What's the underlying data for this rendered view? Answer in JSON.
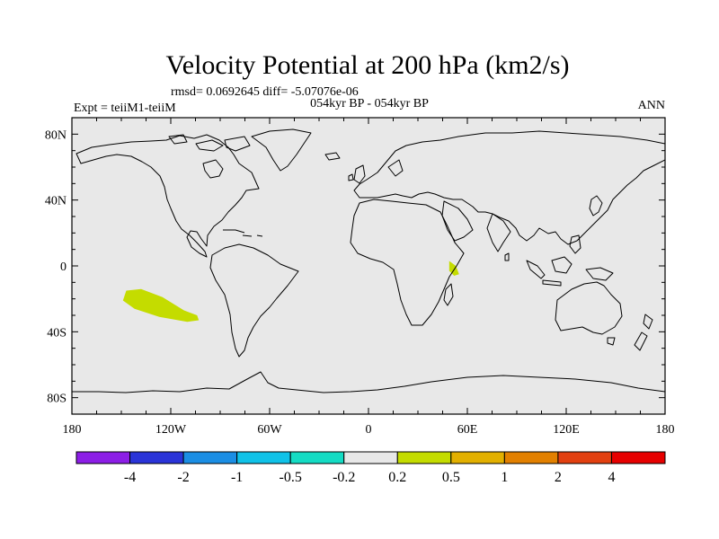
{
  "title": "Velocity Potential at 200 hPa (km2/s)",
  "stats_line": "rmsd= 0.0692645 diff= -5.07076e-06",
  "left_label": "Expt = teiiM1-teiiM",
  "center_label": "054kyr BP - 054kyr BP",
  "right_label": "ANN",
  "map": {
    "projection": "cylindrical-equidistant",
    "lon_range": [
      -180,
      180
    ],
    "lat_range": [
      -90,
      90
    ],
    "background_color": "#e8e8e8",
    "y_ticks": [
      {
        "lat": 80,
        "label": "80N"
      },
      {
        "lat": 40,
        "label": "40N"
      },
      {
        "lat": 0,
        "label": "0"
      },
      {
        "lat": -40,
        "label": "40S"
      },
      {
        "lat": -80,
        "label": "80S"
      }
    ],
    "x_ticks": [
      {
        "lon": -180,
        "label": "180"
      },
      {
        "lon": -120,
        "label": "120W"
      },
      {
        "lon": -60,
        "label": "60W"
      },
      {
        "lon": 0,
        "label": "0"
      },
      {
        "lon": 60,
        "label": "60E"
      },
      {
        "lon": 120,
        "label": "120E"
      },
      {
        "lon": 180,
        "label": "180"
      }
    ],
    "anomaly_regions": [
      {
        "name": "south-pacific-positive-anomaly",
        "color": "#c4dc00",
        "outline": [
          [
            -147,
            -15
          ],
          [
            -138,
            -14
          ],
          [
            -125,
            -19
          ],
          [
            -112,
            -27
          ],
          [
            -104,
            -30
          ],
          [
            -103,
            -33
          ],
          [
            -110,
            -34
          ],
          [
            -127,
            -31
          ],
          [
            -142,
            -26
          ],
          [
            -149,
            -21
          ]
        ]
      },
      {
        "name": "east-africa-positive-anomaly",
        "color": "#c4dc00",
        "outline": [
          [
            49,
            3
          ],
          [
            53,
            0
          ],
          [
            55,
            -5
          ],
          [
            52,
            -6
          ],
          [
            49,
            -3
          ]
        ]
      }
    ]
  },
  "colorbar": {
    "colors": [
      "#8c1ee6",
      "#2a34d8",
      "#1b8ee4",
      "#10c2e8",
      "#14dcc4",
      "#e8e8e8",
      "#c4dc00",
      "#e2b000",
      "#e28000",
      "#e24010",
      "#e60000"
    ],
    "labels": [
      "-4",
      "-2",
      "-1",
      "-0.5",
      "-0.2",
      "0.2",
      "0.5",
      "1",
      "2",
      "4"
    ]
  }
}
